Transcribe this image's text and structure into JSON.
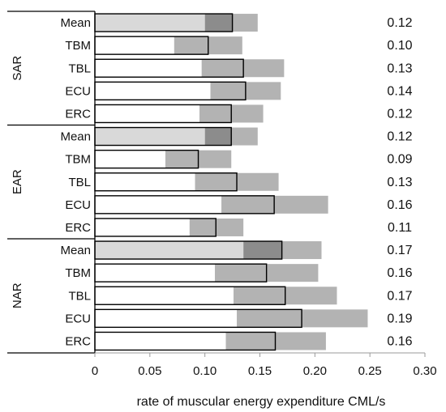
{
  "chart_data": {
    "type": "bar",
    "orientation": "horizontal-stacked-range",
    "xlabel": "rate of muscular energy expenditure CML/s",
    "xlim": [
      0,
      0.3
    ],
    "xticks": [
      "0",
      "0.05",
      "0.10",
      "0.15",
      "0.20",
      "0.25",
      "0.30"
    ],
    "grid": false,
    "colors": {
      "mean_fill": "#d9d9d9",
      "row_fill": "#ffffff",
      "mean_dark_range": "#8c8c8c",
      "range": "#b3b3b3",
      "edge": "#000000"
    },
    "groups": [
      {
        "name": "SAR",
        "rows": [
          {
            "label": "Mean",
            "value": 0.125,
            "low": 0.1,
            "high": 0.148,
            "display": "0.12"
          },
          {
            "label": "TBM",
            "value": 0.103,
            "low": 0.072,
            "high": 0.134,
            "display": "0.10"
          },
          {
            "label": "TBL",
            "value": 0.135,
            "low": 0.097,
            "high": 0.172,
            "display": "0.13"
          },
          {
            "label": "ECU",
            "value": 0.137,
            "low": 0.105,
            "high": 0.169,
            "display": "0.14"
          },
          {
            "label": "ERC",
            "value": 0.124,
            "low": 0.095,
            "high": 0.153,
            "display": "0.12"
          }
        ]
      },
      {
        "name": "EAR",
        "rows": [
          {
            "label": "Mean",
            "value": 0.124,
            "low": 0.1,
            "high": 0.148,
            "display": "0.12"
          },
          {
            "label": "TBM",
            "value": 0.094,
            "low": 0.064,
            "high": 0.124,
            "display": "0.09"
          },
          {
            "label": "TBL",
            "value": 0.129,
            "low": 0.091,
            "high": 0.167,
            "display": "0.13"
          },
          {
            "label": "ECU",
            "value": 0.163,
            "low": 0.115,
            "high": 0.212,
            "display": "0.16"
          },
          {
            "label": "ERC",
            "value": 0.11,
            "low": 0.086,
            "high": 0.135,
            "display": "0.11"
          }
        ]
      },
      {
        "name": "NAR",
        "rows": [
          {
            "label": "Mean",
            "value": 0.17,
            "low": 0.135,
            "high": 0.206,
            "display": "0.17"
          },
          {
            "label": "TBM",
            "value": 0.156,
            "low": 0.109,
            "high": 0.203,
            "display": "0.16"
          },
          {
            "label": "TBL",
            "value": 0.173,
            "low": 0.126,
            "high": 0.22,
            "display": "0.17"
          },
          {
            "label": "ECU",
            "value": 0.188,
            "low": 0.129,
            "high": 0.248,
            "display": "0.19"
          },
          {
            "label": "ERC",
            "value": 0.164,
            "low": 0.119,
            "high": 0.21,
            "display": "0.16"
          }
        ]
      }
    ]
  }
}
